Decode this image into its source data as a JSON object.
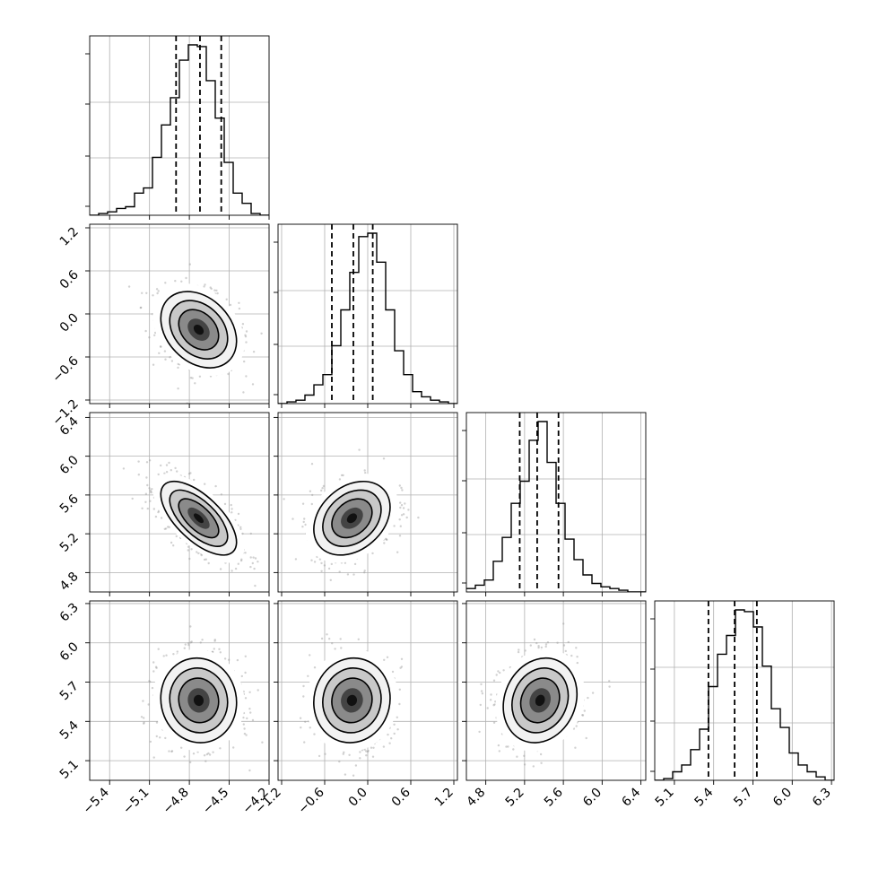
{
  "chart_data": {
    "type": "corner",
    "parameters": [
      "",
      "",
      "",
      ""
    ],
    "grid": true,
    "ranges": [
      [
        -5.55,
        -4.2
      ],
      [
        -1.25,
        1.25
      ],
      [
        4.6,
        6.45
      ],
      [
        4.95,
        6.32
      ]
    ],
    "ticks": [
      [
        -5.4,
        -5.1,
        -4.8,
        -4.5,
        -4.2
      ],
      [
        -1.2,
        -0.6,
        0.0,
        0.6,
        1.2
      ],
      [
        4.8,
        5.2,
        5.6,
        6.0,
        6.4
      ],
      [
        5.1,
        5.4,
        5.7,
        6.0,
        6.3
      ]
    ],
    "tick_labels": [
      [
        "−5.4",
        "−5.1",
        "−4.8",
        "−4.5",
        "−4.2"
      ],
      [
        "−1.2",
        "−0.6",
        "0.0",
        "0.6",
        "1.2"
      ],
      [
        "4.8",
        "5.2",
        "5.6",
        "6.0",
        "6.4"
      ],
      [
        "5.1",
        "5.4",
        "5.7",
        "6.0",
        "6.3"
      ]
    ],
    "means": [
      -4.73,
      -0.22,
      5.36,
      5.56
    ],
    "sigmas": [
      0.15,
      0.28,
      0.2,
      0.17
    ],
    "correlations": [
      [
        0,
        1,
        -0.3
      ],
      [
        0,
        2,
        -0.65
      ],
      [
        0,
        3,
        -0.05
      ],
      [
        1,
        2,
        0.3
      ],
      [
        1,
        3,
        0.05
      ],
      [
        2,
        3,
        0.15
      ]
    ],
    "quantiles": [
      [
        -4.9,
        -4.72,
        -4.56
      ],
      [
        -0.5,
        -0.2,
        0.07
      ],
      [
        5.15,
        5.33,
        5.55
      ],
      [
        5.36,
        5.56,
        5.73
      ]
    ],
    "histograms": [
      [
        0.0,
        0.01,
        0.02,
        0.04,
        0.05,
        0.13,
        0.16,
        0.34,
        0.53,
        0.69,
        0.91,
        1.0,
        0.99,
        0.79,
        0.57,
        0.31,
        0.13,
        0.07,
        0.01,
        0.0
      ],
      [
        0.0,
        0.01,
        0.02,
        0.05,
        0.11,
        0.17,
        0.34,
        0.55,
        0.77,
        0.98,
        1.0,
        0.83,
        0.55,
        0.31,
        0.17,
        0.07,
        0.04,
        0.02,
        0.01,
        0.0
      ],
      [
        0.02,
        0.04,
        0.07,
        0.18,
        0.32,
        0.52,
        0.65,
        0.89,
        1.0,
        0.76,
        0.52,
        0.31,
        0.19,
        0.1,
        0.05,
        0.03,
        0.02,
        0.01,
        0.0,
        0.0
      ],
      [
        0.0,
        0.01,
        0.05,
        0.09,
        0.18,
        0.3,
        0.55,
        0.74,
        0.85,
        1.0,
        0.99,
        0.9,
        0.67,
        0.42,
        0.31,
        0.16,
        0.09,
        0.05,
        0.02,
        0.0
      ]
    ]
  }
}
